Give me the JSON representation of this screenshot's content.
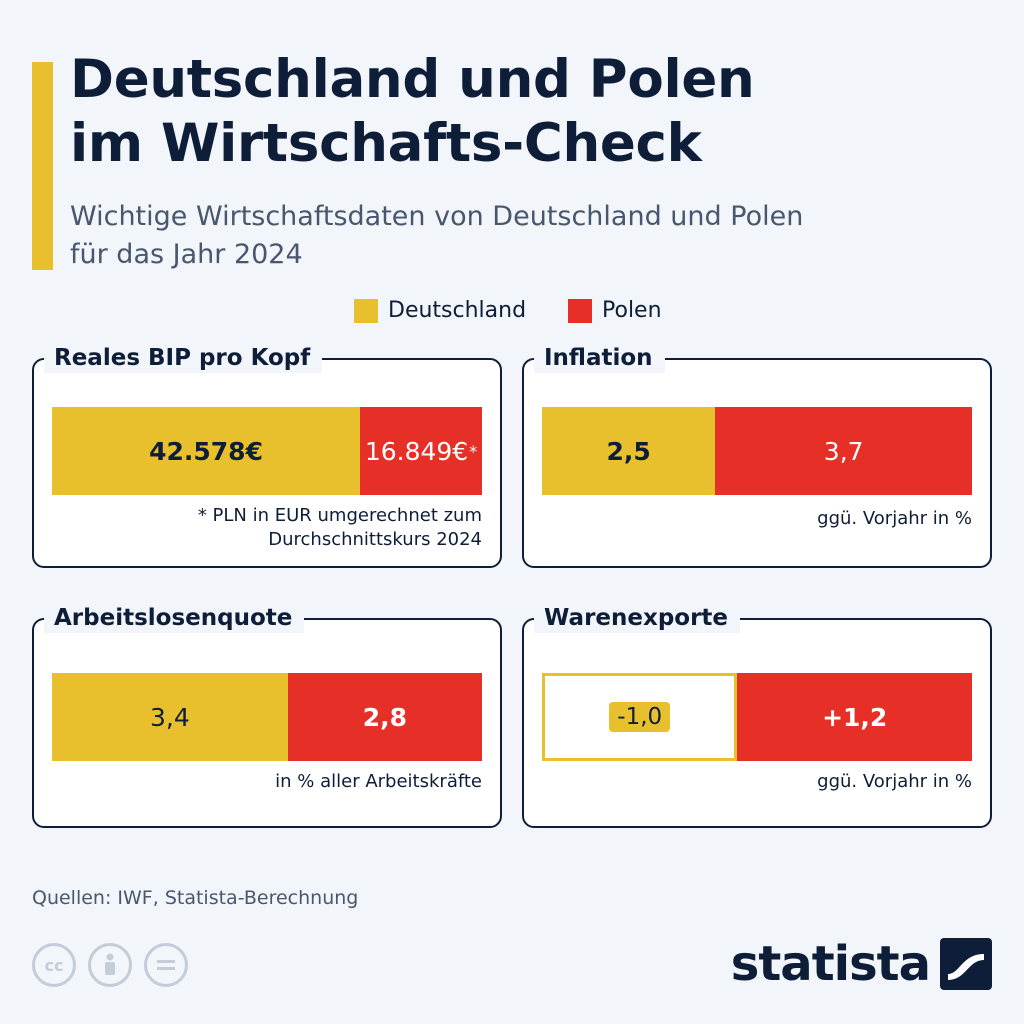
{
  "header": {
    "title_lines": [
      "Deutschland und Polen",
      "im Wirtschafts-Check"
    ],
    "subtitle_lines": [
      "Wichtige Wirtschaftsdaten von Deutschland und Polen",
      "für das Jahr 2024"
    ]
  },
  "legend": [
    {
      "label": "Deutschland",
      "color": "#e8c02e"
    },
    {
      "label": "Polen",
      "color": "#e63027"
    }
  ],
  "colors": {
    "deutschland": "#e8c02e",
    "polen": "#e63027",
    "text": "#0e1e38"
  },
  "chart_data": [
    {
      "type": "bar",
      "title": "Reales BIP pro Kopf",
      "categories": [
        "Deutschland",
        "Polen"
      ],
      "values": [
        42578,
        16849
      ],
      "labels": [
        "42.578€",
        "16.849€"
      ],
      "label_suffixes": [
        "",
        "*"
      ],
      "note_lines": [
        "* PLN in EUR umgerechnet zum",
        "Durchschnittskurs 2024"
      ]
    },
    {
      "type": "bar",
      "title": "Inflation",
      "categories": [
        "Deutschland",
        "Polen"
      ],
      "values": [
        2.5,
        3.7
      ],
      "labels": [
        "2,5",
        "3,7"
      ],
      "note_lines": [
        "ggü. Vorjahr in %"
      ]
    },
    {
      "type": "bar",
      "title": "Arbeitslosenquote",
      "categories": [
        "Deutschland",
        "Polen"
      ],
      "values": [
        3.4,
        2.8
      ],
      "labels": [
        "3,4",
        "2,8"
      ],
      "note_lines": [
        "in % aller Arbeitskräfte"
      ]
    },
    {
      "type": "bar",
      "title": "Warenexporte",
      "categories": [
        "Deutschland",
        "Polen"
      ],
      "values": [
        -1.0,
        1.2
      ],
      "labels": [
        "-1,0",
        "+1,2"
      ],
      "note_lines": [
        "ggü. Vorjahr in %"
      ]
    }
  ],
  "footer": {
    "source": "Quellen: IWF, Statista-Berechnung",
    "license_icons": [
      "cc-icon",
      "attribution-icon",
      "no-derivatives-icon"
    ],
    "brand": "statista"
  }
}
